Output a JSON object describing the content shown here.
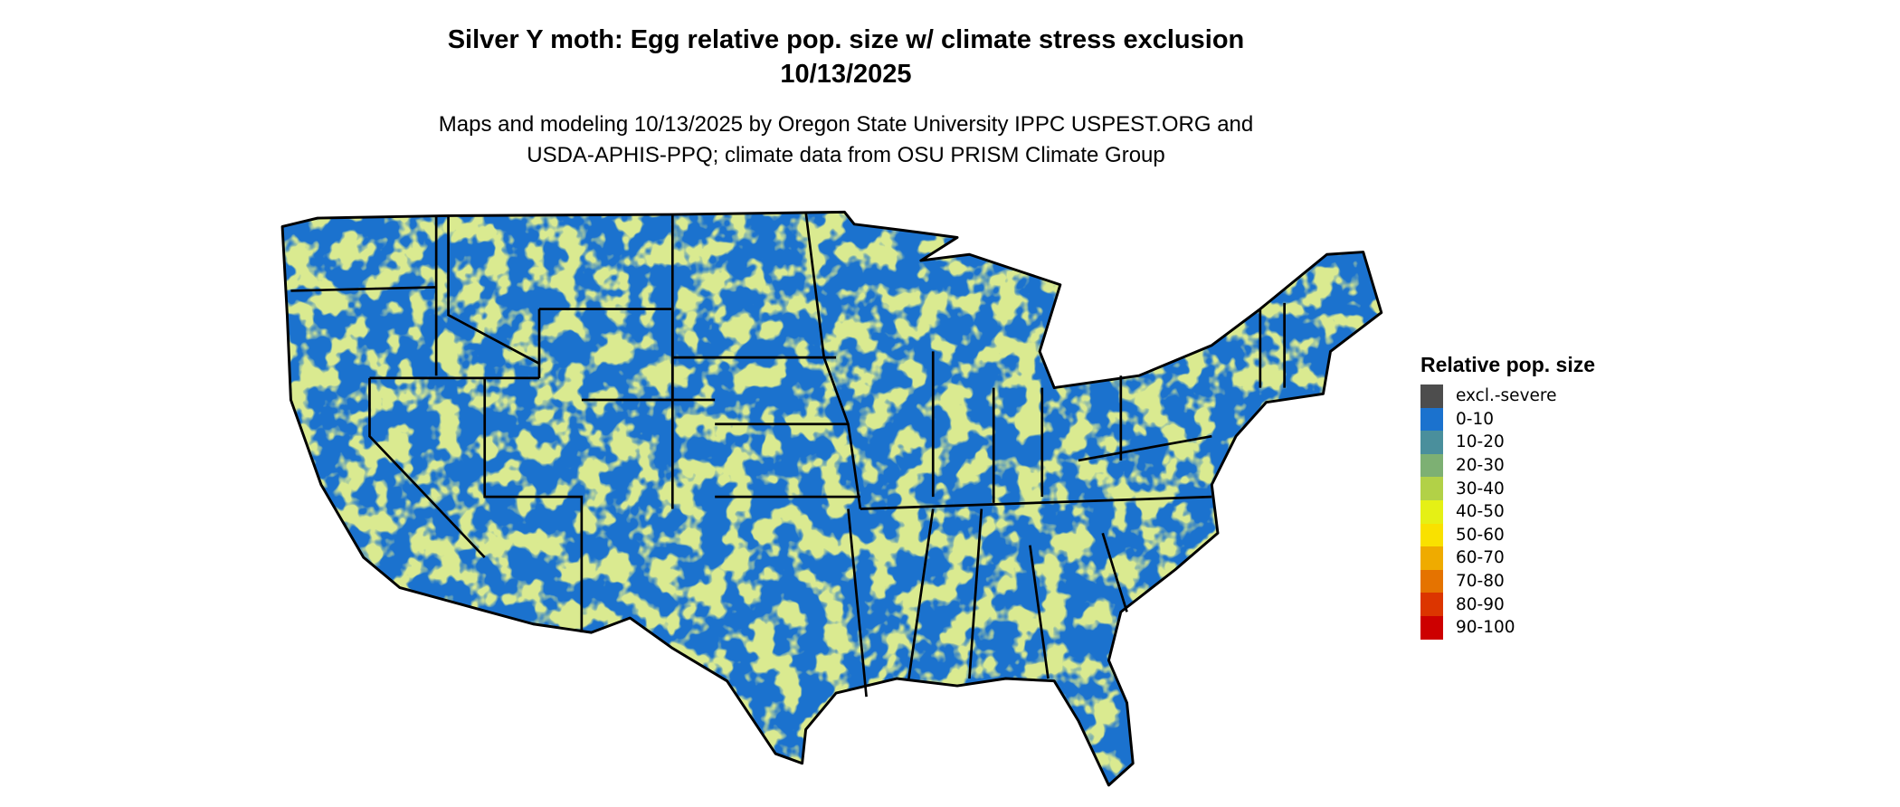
{
  "header": {
    "title": "Silver Y moth: Egg relative pop. size w/ climate stress exclusion",
    "date": "10/13/2025",
    "subtitle_line1": "Maps and modeling 10/13/2025 by Oregon State University IPPC USPEST.ORG and",
    "subtitle_line2": "USDA-APHIS-PPQ; climate data from OSU PRISM Climate Group"
  },
  "map": {
    "region": "Contiguous United States",
    "dominant_class": "0-10",
    "secondary_class": "30-40",
    "border_color": "#000000"
  },
  "legend": {
    "title": "Relative pop. size",
    "items": [
      {
        "label": "excl.-severe",
        "color": "#4d4d4d"
      },
      {
        "label": "0-10",
        "color": "#1b72ce"
      },
      {
        "label": "10-20",
        "color": "#4a8f9c"
      },
      {
        "label": "20-30",
        "color": "#7db073"
      },
      {
        "label": "30-40",
        "color": "#b2d147"
      },
      {
        "label": "40-50",
        "color": "#e5f015"
      },
      {
        "label": "50-60",
        "color": "#f9e100"
      },
      {
        "label": "60-70",
        "color": "#efab00"
      },
      {
        "label": "70-80",
        "color": "#e57300"
      },
      {
        "label": "80-90",
        "color": "#dc3500"
      },
      {
        "label": "90-100",
        "color": "#cd0000"
      }
    ]
  }
}
